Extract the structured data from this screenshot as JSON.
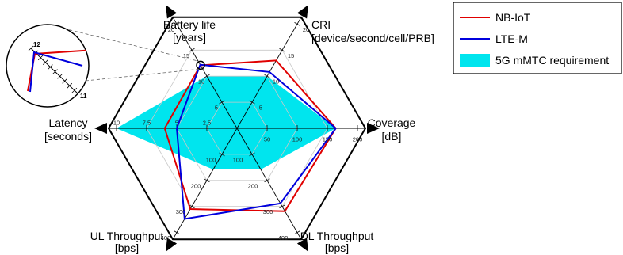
{
  "chart_data": {
    "type": "radar",
    "axes": [
      {
        "key": "battery",
        "label_lines": [
          "Battery life",
          "[years]"
        ],
        "ticks": [
          "5",
          "10",
          "15",
          "20"
        ],
        "max": 20
      },
      {
        "key": "cri",
        "label_lines": [
          "CRI",
          "[device/second/cell/PRB]"
        ],
        "ticks": [
          "5",
          "10",
          "15",
          "20"
        ],
        "max": 20
      },
      {
        "key": "coverage",
        "label_lines": [
          "Coverage",
          "[dB]"
        ],
        "ticks": [
          "50",
          "100",
          "150",
          "200"
        ],
        "max": 200
      },
      {
        "key": "dl",
        "label_lines": [
          "DL Throughput",
          "[bps]"
        ],
        "ticks": [
          "100",
          "200",
          "300",
          "400"
        ],
        "max": 400
      },
      {
        "key": "ul",
        "label_lines": [
          "UL Throughput",
          "[bps]"
        ],
        "ticks": [
          "100",
          "200",
          "300",
          "400"
        ],
        "max": 400
      },
      {
        "key": "latency",
        "label_lines": [
          "Latency",
          "[seconds]"
        ],
        "ticks": [
          "2.5",
          "5",
          "7.5",
          "10"
        ],
        "max": 10
      }
    ],
    "series": [
      {
        "name": "NB-IoT",
        "color": "#e00000",
        "fill": false,
        "values": [
          12.1,
          13.0,
          164,
          318,
          310,
          6.0
        ]
      },
      {
        "name": "LTE-M",
        "color": "#0000dd",
        "fill": false,
        "values": [
          12.2,
          10.8,
          164,
          288,
          348,
          5.0
        ]
      },
      {
        "name": "5G mMTC requirement",
        "color": "#00e5ee",
        "fill": true,
        "values": [
          10,
          10,
          164,
          158,
          158,
          10
        ]
      }
    ],
    "inset_ticks": [
      "12",
      "11"
    ],
    "grid": true,
    "legend_position": "top-right"
  }
}
